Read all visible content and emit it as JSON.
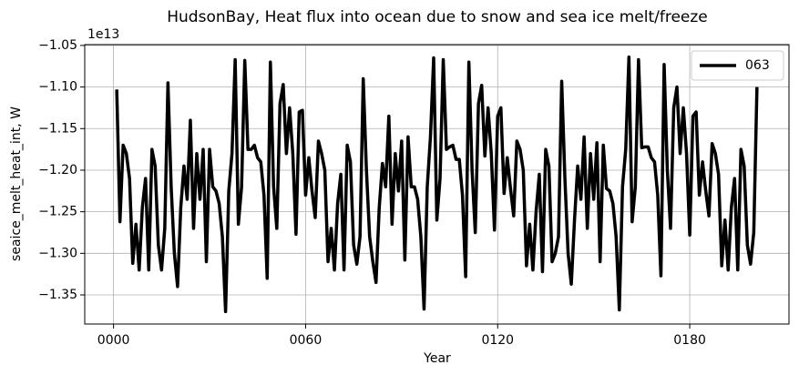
{
  "chart_data": {
    "type": "line",
    "title": "HudsonBay, Heat flux into ocean due to snow and sea ice melt/freeze",
    "x_label": "Year",
    "y_label": "seaice_melt_heat_int, W",
    "y_offset_label": "1e13",
    "x": [
      1,
      2,
      3,
      4,
      5,
      6,
      7,
      8,
      9,
      10,
      11,
      12,
      13,
      14,
      15,
      16,
      17,
      18,
      19,
      20,
      21,
      22,
      23,
      24,
      25,
      26,
      27,
      28,
      29,
      30,
      31,
      32,
      33,
      34,
      35,
      36,
      37,
      38,
      39,
      40,
      41,
      42,
      43,
      44,
      45,
      46,
      47,
      48,
      49,
      50,
      51,
      52,
      53,
      54,
      55,
      56,
      57,
      58,
      59,
      60,
      61,
      62,
      63,
      64,
      65,
      66,
      67,
      68,
      69,
      70,
      71,
      72,
      73,
      74,
      75,
      76,
      77,
      78,
      79,
      80,
      81,
      82,
      83,
      84,
      85,
      86,
      87,
      88,
      89,
      90,
      91,
      92,
      93,
      94,
      95,
      96,
      97,
      98,
      99,
      100,
      101,
      102,
      103,
      104,
      105,
      106,
      107,
      108,
      109,
      110,
      111,
      112,
      113,
      114,
      115,
      116,
      117,
      118,
      119,
      120,
      121,
      122,
      123,
      124,
      125,
      126,
      127,
      128,
      129,
      130,
      131,
      132,
      133,
      134,
      135,
      136,
      137,
      138,
      139,
      140,
      141,
      142,
      143,
      144,
      145,
      146,
      147,
      148,
      149,
      150,
      151,
      152,
      153,
      154,
      155,
      156,
      157,
      158,
      159,
      160,
      161,
      162,
      163,
      164,
      165,
      166,
      167,
      168,
      169,
      170,
      171,
      172,
      173,
      174,
      175,
      176,
      177,
      178,
      179,
      180,
      181,
      182,
      183,
      184,
      185,
      186,
      187,
      188,
      189,
      190,
      191,
      192,
      193,
      194,
      195,
      196,
      197,
      198,
      199,
      200,
      201
    ],
    "series": [
      {
        "name": "063",
        "color": "#000000",
        "values": [
          -1.103,
          -1.262,
          -1.17,
          -1.18,
          -1.21,
          -1.312,
          -1.265,
          -1.32,
          -1.245,
          -1.21,
          -1.32,
          -1.175,
          -1.195,
          -1.29,
          -1.32,
          -1.27,
          -1.095,
          -1.22,
          -1.3,
          -1.34,
          -1.245,
          -1.195,
          -1.235,
          -1.14,
          -1.27,
          -1.18,
          -1.235,
          -1.175,
          -1.31,
          -1.175,
          -1.22,
          -1.225,
          -1.24,
          -1.28,
          -1.37,
          -1.225,
          -1.18,
          -1.067,
          -1.265,
          -1.22,
          -1.068,
          -1.175,
          -1.175,
          -1.17,
          -1.185,
          -1.19,
          -1.23,
          -1.33,
          -1.07,
          -1.22,
          -1.27,
          -1.12,
          -1.097,
          -1.18,
          -1.125,
          -1.18,
          -1.277,
          -1.13,
          -1.128,
          -1.23,
          -1.185,
          -1.225,
          -1.257,
          -1.165,
          -1.18,
          -1.2,
          -1.31,
          -1.27,
          -1.32,
          -1.24,
          -1.205,
          -1.32,
          -1.17,
          -1.19,
          -1.29,
          -1.313,
          -1.28,
          -1.09,
          -1.2,
          -1.28,
          -1.31,
          -1.335,
          -1.245,
          -1.192,
          -1.22,
          -1.135,
          -1.265,
          -1.18,
          -1.225,
          -1.165,
          -1.308,
          -1.16,
          -1.22,
          -1.22,
          -1.235,
          -1.28,
          -1.367,
          -1.22,
          -1.16,
          -1.065,
          -1.26,
          -1.21,
          -1.067,
          -1.175,
          -1.172,
          -1.17,
          -1.187,
          -1.187,
          -1.23,
          -1.328,
          -1.07,
          -1.2,
          -1.275,
          -1.12,
          -1.098,
          -1.183,
          -1.125,
          -1.18,
          -1.272,
          -1.135,
          -1.125,
          -1.228,
          -1.185,
          -1.222,
          -1.255,
          -1.165,
          -1.175,
          -1.2,
          -1.315,
          -1.265,
          -1.32,
          -1.25,
          -1.205,
          -1.322,
          -1.175,
          -1.195,
          -1.31,
          -1.3,
          -1.28,
          -1.093,
          -1.21,
          -1.3,
          -1.337,
          -1.26,
          -1.195,
          -1.235,
          -1.16,
          -1.27,
          -1.18,
          -1.235,
          -1.167,
          -1.31,
          -1.17,
          -1.222,
          -1.225,
          -1.24,
          -1.28,
          -1.368,
          -1.22,
          -1.175,
          -1.064,
          -1.262,
          -1.22,
          -1.067,
          -1.173,
          -1.172,
          -1.172,
          -1.185,
          -1.19,
          -1.23,
          -1.327,
          -1.073,
          -1.2,
          -1.27,
          -1.125,
          -1.1,
          -1.18,
          -1.125,
          -1.18,
          -1.278,
          -1.135,
          -1.13,
          -1.23,
          -1.19,
          -1.225,
          -1.255,
          -1.168,
          -1.18,
          -1.205,
          -1.315,
          -1.26,
          -1.32,
          -1.245,
          -1.21,
          -1.32,
          -1.175,
          -1.195,
          -1.29,
          -1.313,
          -1.275,
          -1.1
        ]
      }
    ],
    "xlim": [
      -9,
      211
    ],
    "ylim": [
      -1.385,
      -1.049
    ],
    "xticks": [
      {
        "value": 0,
        "label": "0000"
      },
      {
        "value": 60,
        "label": "0060"
      },
      {
        "value": 120,
        "label": "0120"
      },
      {
        "value": 180,
        "label": "0180"
      }
    ],
    "yticks": [
      {
        "value": -1.35,
        "label": "−1.35"
      },
      {
        "value": -1.3,
        "label": "−1.30"
      },
      {
        "value": -1.25,
        "label": "−1.25"
      },
      {
        "value": -1.2,
        "label": "−1.20"
      },
      {
        "value": -1.15,
        "label": "−1.15"
      },
      {
        "value": -1.1,
        "label": "−1.10"
      },
      {
        "value": -1.05,
        "label": "−1.05"
      }
    ],
    "grid": true,
    "legend": "upper right"
  }
}
